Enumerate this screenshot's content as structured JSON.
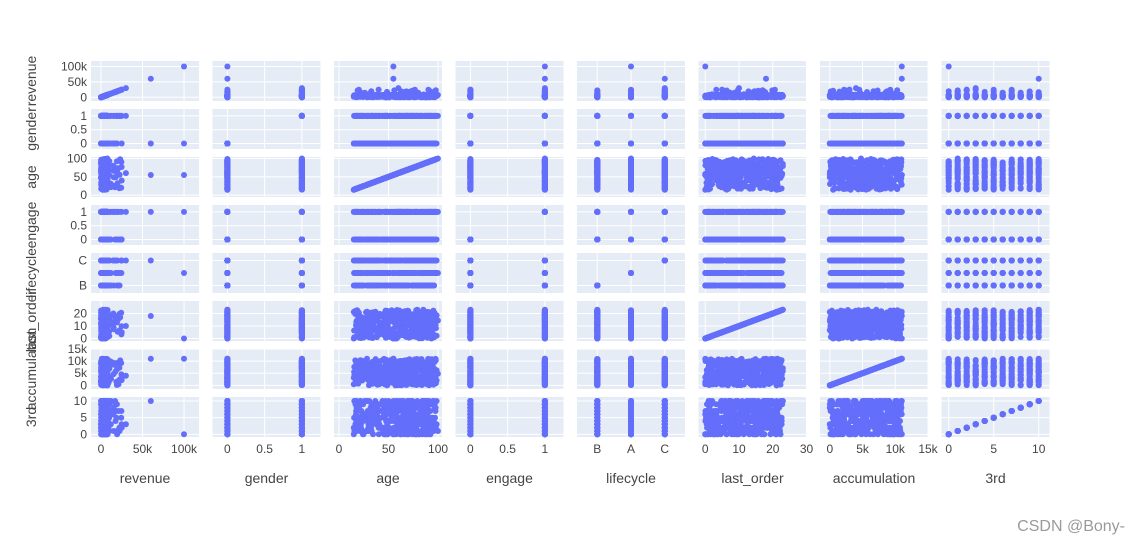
{
  "toolbar": {
    "buttons": [
      {
        "name": "camera-icon",
        "glyph": "📷"
      },
      {
        "name": "zoom-icon",
        "glyph": "🔍"
      },
      {
        "name": "pan-icon",
        "glyph": "✥"
      },
      {
        "name": "box-select-icon",
        "glyph": "⬚"
      },
      {
        "name": "lasso-select-icon",
        "glyph": "◯"
      },
      {
        "name": "zoom-in-icon",
        "glyph": "⊞"
      },
      {
        "name": "zoom-out-icon",
        "glyph": "⊟"
      },
      {
        "name": "autoscale-icon",
        "glyph": "⤧"
      },
      {
        "name": "reset-axes-icon",
        "glyph": "⌂"
      },
      {
        "name": "spike-lines-icon",
        "glyph": "⋮"
      },
      {
        "name": "hover-closest-icon",
        "glyph": "◀"
      },
      {
        "name": "hover-compare-icon",
        "glyph": "≡"
      },
      {
        "name": "plotly-logo-icon",
        "glyph": "▦"
      }
    ]
  },
  "watermark": "CSDN @Bony-",
  "chart_data": {
    "type": "scatter-matrix",
    "marker_color": "#636efa",
    "background_color": "#e5ecf6",
    "grid_color": "#ffffff",
    "dimensions": [
      {
        "name": "revenue",
        "kind": "num",
        "range": [
          -12000,
          118000
        ],
        "ticks": [
          {
            "v": 0,
            "t": "0"
          },
          {
            "v": 50000,
            "t": "50k"
          },
          {
            "v": 100000,
            "t": "100k"
          }
        ]
      },
      {
        "name": "gender",
        "kind": "num",
        "range": [
          -0.2,
          1.25
        ],
        "ticks": [
          {
            "v": 0,
            "t": "0"
          },
          {
            "v": 0.5,
            "t": "0.5"
          },
          {
            "v": 1,
            "t": "1"
          }
        ]
      },
      {
        "name": "age",
        "kind": "num",
        "range": [
          -5,
          104
        ],
        "ticks": [
          {
            "v": 0,
            "t": "0"
          },
          {
            "v": 50,
            "t": "50"
          },
          {
            "v": 100,
            "t": "100"
          }
        ]
      },
      {
        "name": "engage",
        "kind": "num",
        "range": [
          -0.2,
          1.25
        ],
        "ticks": [
          {
            "v": 0,
            "t": "0"
          },
          {
            "v": 0.5,
            "t": "0.5"
          },
          {
            "v": 1,
            "t": "1"
          }
        ]
      },
      {
        "name": "lifecycle",
        "kind": "cat",
        "range": [
          -0.6,
          2.6
        ],
        "categories": [
          "B",
          "A",
          "C"
        ],
        "ticks": [
          {
            "v": 0,
            "t": "B"
          },
          {
            "v": 1,
            "t": "A"
          },
          {
            "v": 2,
            "t": "C"
          }
        ]
      },
      {
        "name": "last_order",
        "kind": "num",
        "range": [
          -2,
          30
        ],
        "ticks": [
          {
            "v": 0,
            "t": "0"
          },
          {
            "v": 10,
            "t": "10"
          },
          {
            "v": 20,
            "t": "20"
          },
          {
            "v": 30,
            "t": "30"
          }
        ]
      },
      {
        "name": "accumulation",
        "kind": "num",
        "range": [
          -1500,
          15000
        ],
        "ticks": [
          {
            "v": 0,
            "t": "0"
          },
          {
            "v": 5000,
            "t": "5k"
          },
          {
            "v": 10000,
            "t": "10k"
          },
          {
            "v": 15000,
            "t": "15k"
          }
        ]
      },
      {
        "name": "3rd",
        "kind": "num",
        "range": [
          -0.8,
          11.2
        ],
        "ticks": [
          {
            "v": 0,
            "t": "0"
          },
          {
            "v": 5,
            "t": "5"
          },
          {
            "v": 10,
            "t": "10"
          }
        ]
      }
    ],
    "row_ticks": {
      "revenue": [
        {
          "v": 0,
          "t": "0"
        },
        {
          "v": 50000,
          "t": "50k"
        },
        {
          "v": 100000,
          "t": "100k"
        }
      ],
      "gender": [
        {
          "v": 0,
          "t": "0"
        },
        {
          "v": 0.5,
          "t": "0.5"
        },
        {
          "v": 1,
          "t": "1"
        }
      ],
      "age": [
        {
          "v": 0,
          "t": "0"
        },
        {
          "v": 50,
          "t": "50"
        },
        {
          "v": 100,
          "t": "100"
        }
      ],
      "engage": [
        {
          "v": 0,
          "t": "0"
        },
        {
          "v": 0.5,
          "t": "0.5"
        },
        {
          "v": 1,
          "t": "1"
        }
      ],
      "lifecycle": [
        {
          "v": 0,
          "t": "B"
        },
        {
          "v": 2,
          "t": "C"
        }
      ],
      "last_order": [
        {
          "v": 0,
          "t": "0"
        },
        {
          "v": 10,
          "t": "10"
        },
        {
          "v": 20,
          "t": "20"
        }
      ],
      "accumulation": [
        {
          "v": 0,
          "t": "0"
        },
        {
          "v": 5000,
          "t": "5k"
        },
        {
          "v": 10000,
          "t": "10k"
        },
        {
          "v": 15000,
          "t": "15k"
        }
      ],
      "3rd": [
        {
          "v": 0,
          "t": "0"
        },
        {
          "v": 5,
          "t": "5"
        },
        {
          "v": 10,
          "t": "10"
        }
      ]
    },
    "sample_points": [
      {
        "revenue": 100000,
        "gender": 0,
        "age": 55,
        "engage": 1,
        "lifecycle": "A",
        "last_order": 0,
        "accumulation": 11000,
        "3rd": 0
      },
      {
        "revenue": 60000,
        "gender": 0,
        "age": 55,
        "engage": 1,
        "lifecycle": "C",
        "last_order": 18,
        "accumulation": 11000,
        "3rd": 10
      },
      {
        "revenue": 30000,
        "gender": 1,
        "age": 60,
        "engage": 1,
        "lifecycle": "C",
        "last_order": 10,
        "accumulation": 4000,
        "3rd": 3
      },
      {
        "revenue": 25000,
        "gender": 0,
        "age": 40,
        "engage": 0,
        "lifecycle": "C",
        "last_order": 5,
        "accumulation": 3000,
        "3rd": 2
      },
      {
        "revenue": 15000,
        "gender": 1,
        "age": 80,
        "engage": 1,
        "lifecycle": "C",
        "last_order": 20,
        "accumulation": 9000,
        "3rd": 6
      },
      {
        "revenue": 10000,
        "gender": 0,
        "age": 30,
        "engage": 0,
        "lifecycle": "A",
        "last_order": 2,
        "accumulation": 2000,
        "3rd": 1
      },
      {
        "revenue": 5000,
        "gender": 1,
        "age": 90,
        "engage": 1,
        "lifecycle": "B",
        "last_order": 7,
        "accumulation": 7000,
        "3rd": 5
      },
      {
        "revenue": 2000,
        "gender": 0,
        "age": 15,
        "engage": 0,
        "lifecycle": "B",
        "last_order": 0,
        "accumulation": 500,
        "3rd": 0
      },
      {
        "revenue": 1000,
        "gender": 1,
        "age": 70,
        "engage": 1,
        "lifecycle": "A",
        "last_order": 22,
        "accumulation": 10500,
        "3rd": 9
      },
      {
        "revenue": 500,
        "gender": 0,
        "age": 50,
        "engage": 1,
        "lifecycle": "C",
        "last_order": 14,
        "accumulation": 5000,
        "3rd": 4
      }
    ]
  }
}
